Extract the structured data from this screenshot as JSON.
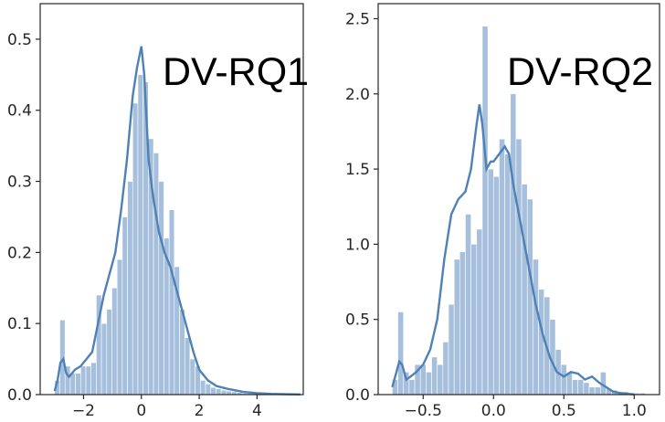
{
  "chart_data": [
    {
      "type": "histogram",
      "title": "",
      "xlabel": "",
      "ylabel": "",
      "panel_label": "DV-RQ1",
      "xlim": [
        -3.5,
        5.6
      ],
      "ylim": [
        0,
        0.55
      ],
      "x_ticks": [
        -2,
        0,
        2,
        4
      ],
      "x_tick_labels": [
        "−2",
        "0",
        "2",
        "4"
      ],
      "y_ticks": [
        0.0,
        0.1,
        0.2,
        0.3,
        0.4,
        0.5
      ],
      "y_tick_labels": [
        "0.0",
        "0.1",
        "0.2",
        "0.3",
        "0.4",
        "0.5"
      ],
      "grid": false,
      "bar_color": "#a6bfdc",
      "kde_color": "#4f81b4",
      "bins": {
        "x0": [
          -3.0,
          -2.82,
          -2.64,
          -2.46,
          -2.28,
          -2.1,
          -1.92,
          -1.74,
          -1.56,
          -1.38,
          -1.2,
          -1.02,
          -0.84,
          -0.66,
          -0.48,
          -0.3,
          -0.12,
          0.06,
          0.24,
          0.42,
          0.6,
          0.78,
          0.96,
          1.14,
          1.32,
          1.5,
          1.68,
          1.86,
          2.04,
          2.22,
          2.4,
          2.58,
          2.76,
          2.94,
          3.12,
          3.3,
          3.48,
          3.66,
          3.84,
          4.02,
          4.2,
          4.38,
          4.56,
          4.74,
          4.92,
          5.1,
          5.28
        ],
        "width": 0.18,
        "values": [
          0.02,
          0.105,
          0.04,
          0.03,
          0.03,
          0.04,
          0.04,
          0.045,
          0.14,
          0.1,
          0.12,
          0.15,
          0.19,
          0.25,
          0.3,
          0.41,
          0.45,
          0.44,
          0.36,
          0.34,
          0.3,
          0.22,
          0.26,
          0.18,
          0.12,
          0.08,
          0.05,
          0.04,
          0.02,
          0.015,
          0.01,
          0.008,
          0.006,
          0.005,
          0.004,
          0.003,
          0.002,
          0.002,
          0.002,
          0.002,
          0.001,
          0.001,
          0.001,
          0.001,
          0.001,
          0.001,
          0.001
        ]
      },
      "kde": {
        "x": [
          -3.0,
          -2.9,
          -2.8,
          -2.7,
          -2.6,
          -2.5,
          -2.3,
          -2.1,
          -1.9,
          -1.7,
          -1.5,
          -1.3,
          -1.1,
          -0.9,
          -0.7,
          -0.5,
          -0.3,
          -0.15,
          0.0,
          0.1,
          0.25,
          0.4,
          0.6,
          0.8,
          1.0,
          1.2,
          1.4,
          1.6,
          1.8,
          2.0,
          2.3,
          2.6,
          3.0,
          3.5,
          4.0,
          4.5,
          5.0,
          5.5
        ],
        "y": [
          0.005,
          0.02,
          0.045,
          0.05,
          0.03,
          0.025,
          0.035,
          0.04,
          0.05,
          0.06,
          0.1,
          0.14,
          0.17,
          0.2,
          0.26,
          0.33,
          0.42,
          0.46,
          0.49,
          0.45,
          0.33,
          0.28,
          0.23,
          0.2,
          0.18,
          0.15,
          0.12,
          0.09,
          0.06,
          0.035,
          0.02,
          0.012,
          0.008,
          0.004,
          0.002,
          0.001,
          0.0005,
          0.0002
        ]
      }
    },
    {
      "type": "histogram",
      "title": "",
      "xlabel": "",
      "ylabel": "",
      "panel_label": "DV-RQ2",
      "xlim": [
        -0.82,
        1.18
      ],
      "ylim": [
        0,
        2.6
      ],
      "x_ticks": [
        -0.5,
        0.0,
        0.5,
        1.0
      ],
      "x_tick_labels": [
        "−0.5",
        "0.0",
        "0.5",
        "1.0"
      ],
      "y_ticks": [
        0.0,
        0.5,
        1.0,
        1.5,
        2.0,
        2.5
      ],
      "y_tick_labels": [
        "0.0",
        "0.5",
        "1.0",
        "1.5",
        "2.0",
        "2.5"
      ],
      "grid": false,
      "bar_color": "#a6bfdc",
      "kde_color": "#4f81b4",
      "bins": {
        "x0": [
          -0.72,
          -0.68,
          -0.64,
          -0.6,
          -0.56,
          -0.52,
          -0.48,
          -0.44,
          -0.4,
          -0.36,
          -0.32,
          -0.28,
          -0.24,
          -0.2,
          -0.16,
          -0.12,
          -0.08,
          -0.04,
          0.0,
          0.04,
          0.08,
          0.12,
          0.16,
          0.2,
          0.24,
          0.28,
          0.32,
          0.36,
          0.4,
          0.44,
          0.48,
          0.52,
          0.56,
          0.6,
          0.64,
          0.68,
          0.72,
          0.76,
          0.8,
          0.84,
          0.88,
          0.92,
          0.96,
          1.0,
          1.04
        ],
        "width": 0.04,
        "values": [
          0.1,
          0.55,
          0.15,
          0.1,
          0.2,
          0.2,
          0.15,
          0.25,
          0.2,
          0.35,
          0.6,
          0.9,
          0.95,
          1.2,
          1.0,
          1.1,
          2.45,
          1.5,
          1.45,
          1.7,
          1.6,
          2.0,
          1.7,
          1.4,
          1.3,
          0.9,
          0.7,
          0.65,
          0.5,
          0.3,
          0.2,
          0.15,
          0.1,
          0.1,
          0.08,
          0.05,
          0.05,
          0.15,
          0.04,
          0.03,
          0.02,
          0.02,
          0.01,
          0.01,
          0.01
        ]
      },
      "kde": {
        "x": [
          -0.72,
          -0.69,
          -0.67,
          -0.65,
          -0.62,
          -0.59,
          -0.55,
          -0.5,
          -0.45,
          -0.4,
          -0.35,
          -0.3,
          -0.25,
          -0.2,
          -0.16,
          -0.12,
          -0.1,
          -0.08,
          -0.05,
          -0.02,
          0.0,
          0.04,
          0.08,
          0.11,
          0.14,
          0.18,
          0.22,
          0.26,
          0.3,
          0.35,
          0.4,
          0.45,
          0.5,
          0.55,
          0.6,
          0.65,
          0.7,
          0.75,
          0.8,
          0.85,
          0.9,
          0.95,
          1.0
        ],
        "y": [
          0.05,
          0.15,
          0.22,
          0.2,
          0.1,
          0.12,
          0.15,
          0.2,
          0.3,
          0.5,
          0.9,
          1.2,
          1.3,
          1.35,
          1.5,
          1.8,
          1.93,
          1.8,
          1.5,
          1.55,
          1.55,
          1.6,
          1.65,
          1.6,
          1.4,
          1.2,
          1.0,
          0.8,
          0.6,
          0.4,
          0.25,
          0.15,
          0.12,
          0.15,
          0.14,
          0.1,
          0.12,
          0.08,
          0.05,
          0.02,
          0.01,
          0.005,
          0.002
        ]
      }
    }
  ]
}
